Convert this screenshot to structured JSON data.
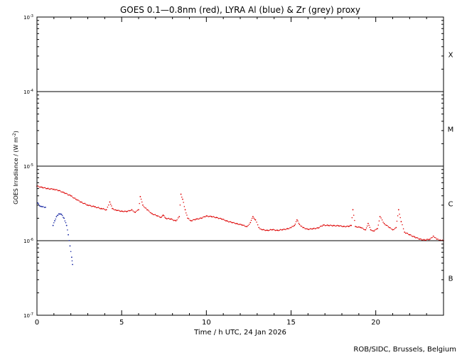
{
  "chart_data": {
    "type": "scatter",
    "title": "GOES 0.1—0.8nm (red), LYRA Al (blue) & Zr (grey) proxy",
    "xlabel": "Time / h UTC, 24 Jan 2026",
    "ylabel": "GOES Irradiance / (W m",
    "ylabel_sup": "-2",
    "ylabel_close": ")",
    "footer": "ROB/SIDC, Brussels, Belgium",
    "xlim": [
      0,
      24
    ],
    "ylim": [
      1e-07,
      0.001
    ],
    "yscale": "log",
    "x_ticks": [
      0,
      5,
      10,
      15,
      20
    ],
    "x_tick_labels": [
      "0",
      "5",
      "10",
      "15",
      "20"
    ],
    "y_tick_labels": [
      {
        "base": "10",
        "exp": "-7",
        "value": 1e-07
      },
      {
        "base": "10",
        "exp": "-6",
        "value": 1e-06
      },
      {
        "base": "10",
        "exp": "-5",
        "value": 1e-05
      },
      {
        "base": "10",
        "exp": "-4",
        "value": 0.0001
      },
      {
        "base": "10",
        "exp": "-3",
        "value": 0.001
      }
    ],
    "flare_class_lines": [
      1e-06,
      1e-05,
      0.0001
    ],
    "flare_class_labels": [
      {
        "label": "B",
        "log_center": -6.5
      },
      {
        "label": "C",
        "log_center": -5.5
      },
      {
        "label": "M",
        "log_center": -4.5
      },
      {
        "label": "X",
        "log_center": -3.5
      }
    ],
    "series": [
      {
        "color": "#dd0000",
        "points": [
          [
            0.0,
            5.4e-06
          ],
          [
            0.3,
            5.2e-06
          ],
          [
            0.6,
            5e-06
          ],
          [
            1.0,
            4.9e-06
          ],
          [
            1.3,
            4.7e-06
          ],
          [
            1.6,
            4.4e-06
          ],
          [
            2.0,
            4e-06
          ],
          [
            2.3,
            3.6e-06
          ],
          [
            2.6,
            3.3e-06
          ],
          [
            3.0,
            3e-06
          ],
          [
            3.4,
            2.85e-06
          ],
          [
            3.8,
            2.7e-06
          ],
          [
            4.1,
            2.6e-06
          ],
          [
            4.3,
            3.3e-06
          ],
          [
            4.45,
            2.7e-06
          ],
          [
            4.7,
            2.55e-06
          ],
          [
            5.0,
            2.5e-06
          ],
          [
            5.3,
            2.45e-06
          ],
          [
            5.6,
            2.6e-06
          ],
          [
            5.8,
            2.4e-06
          ],
          [
            6.0,
            2.6e-06
          ],
          [
            6.1,
            3.9e-06
          ],
          [
            6.25,
            3e-06
          ],
          [
            6.5,
            2.6e-06
          ],
          [
            6.8,
            2.3e-06
          ],
          [
            7.1,
            2.15e-06
          ],
          [
            7.3,
            2.05e-06
          ],
          [
            7.45,
            2.2e-06
          ],
          [
            7.6,
            2e-06
          ],
          [
            7.9,
            1.95e-06
          ],
          [
            8.2,
            1.85e-06
          ],
          [
            8.4,
            2.1e-06
          ],
          [
            8.5,
            4.2e-06
          ],
          [
            8.6,
            3.6e-06
          ],
          [
            8.75,
            2.6e-06
          ],
          [
            8.9,
            2e-06
          ],
          [
            9.1,
            1.85e-06
          ],
          [
            9.4,
            1.95e-06
          ],
          [
            9.7,
            2e-06
          ],
          [
            10.0,
            2.15e-06
          ],
          [
            10.3,
            2.1e-06
          ],
          [
            10.6,
            2.05e-06
          ],
          [
            10.9,
            1.95e-06
          ],
          [
            11.2,
            1.85e-06
          ],
          [
            11.5,
            1.75e-06
          ],
          [
            11.8,
            1.7e-06
          ],
          [
            12.1,
            1.62e-06
          ],
          [
            12.4,
            1.55e-06
          ],
          [
            12.6,
            1.75e-06
          ],
          [
            12.75,
            2.1e-06
          ],
          [
            12.9,
            1.9e-06
          ],
          [
            13.1,
            1.5e-06
          ],
          [
            13.3,
            1.4e-06
          ],
          [
            13.6,
            1.38e-06
          ],
          [
            13.9,
            1.4e-06
          ],
          [
            14.2,
            1.38e-06
          ],
          [
            14.5,
            1.4e-06
          ],
          [
            14.8,
            1.45e-06
          ],
          [
            15.0,
            1.5e-06
          ],
          [
            15.2,
            1.6e-06
          ],
          [
            15.35,
            1.9e-06
          ],
          [
            15.5,
            1.65e-06
          ],
          [
            15.7,
            1.5e-06
          ],
          [
            16.0,
            1.42e-06
          ],
          [
            16.3,
            1.45e-06
          ],
          [
            16.6,
            1.48e-06
          ],
          [
            16.9,
            1.62e-06
          ],
          [
            17.2,
            1.6e-06
          ],
          [
            17.5,
            1.6e-06
          ],
          [
            17.8,
            1.58e-06
          ],
          [
            18.1,
            1.56e-06
          ],
          [
            18.4,
            1.55e-06
          ],
          [
            18.55,
            1.6e-06
          ],
          [
            18.65,
            2.6e-06
          ],
          [
            18.8,
            1.55e-06
          ],
          [
            19.1,
            1.5e-06
          ],
          [
            19.4,
            1.4e-06
          ],
          [
            19.55,
            1.7e-06
          ],
          [
            19.7,
            1.4e-06
          ],
          [
            19.9,
            1.35e-06
          ],
          [
            20.1,
            1.45e-06
          ],
          [
            20.25,
            2.1e-06
          ],
          [
            20.5,
            1.7e-06
          ],
          [
            20.8,
            1.5e-06
          ],
          [
            21.0,
            1.4e-06
          ],
          [
            21.2,
            1.5e-06
          ],
          [
            21.35,
            2.6e-06
          ],
          [
            21.5,
            1.8e-06
          ],
          [
            21.7,
            1.3e-06
          ],
          [
            22.0,
            1.2e-06
          ],
          [
            22.3,
            1.12e-06
          ],
          [
            22.6,
            1.05e-06
          ],
          [
            22.9,
            1.02e-06
          ],
          [
            23.2,
            1.05e-06
          ],
          [
            23.4,
            1.15e-06
          ],
          [
            23.6,
            1.05e-06
          ],
          [
            23.8,
            1.02e-06
          ],
          [
            24.0,
            1e-06
          ]
        ]
      },
      {
        "color": "#1020a0",
        "points": [
          [
            0.05,
            3.2e-06
          ],
          [
            0.15,
            2.95e-06
          ],
          [
            0.3,
            2.85e-06
          ],
          [
            0.5,
            2.8e-06
          ],
          [
            0.95,
            1.6e-06
          ],
          [
            1.05,
            1.85e-06
          ],
          [
            1.15,
            2.1e-06
          ],
          [
            1.3,
            2.3e-06
          ],
          [
            1.45,
            2.25e-06
          ],
          [
            1.6,
            2e-06
          ],
          [
            1.75,
            1.6e-06
          ],
          [
            1.85,
            1.2e-06
          ],
          [
            1.95,
            8.5e-07
          ],
          [
            2.05,
            6e-07
          ],
          [
            2.1,
            4.8e-07
          ]
        ]
      }
    ]
  }
}
